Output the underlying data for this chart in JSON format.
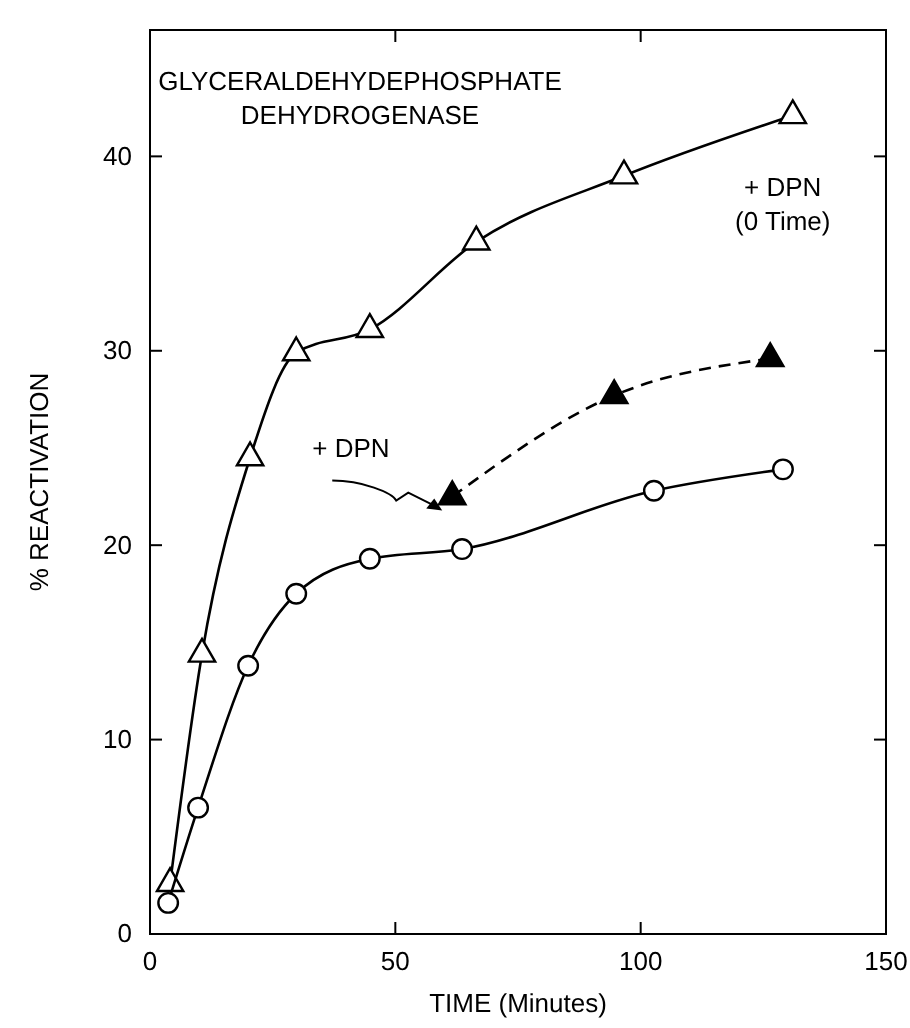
{
  "chart_data": {
    "type": "line",
    "title": "GLYCERALDEHYDEPHOSPHATE DEHYDROGENASE",
    "xlabel": "TIME (Minutes)",
    "ylabel": "% REACTIVATION",
    "xlim": [
      0,
      150
    ],
    "xticks": [
      0,
      50,
      100,
      150
    ],
    "ylim": [
      0,
      46.5
    ],
    "yticks": [
      0,
      10,
      20,
      30,
      40
    ],
    "grid": false,
    "series": [
      {
        "name": "+ DPN (0 Time)",
        "color": "#000000",
        "marker": "triangle",
        "line_style": "solid",
        "x": [
          4.1,
          10.6,
          20.4,
          29.8,
          44.8,
          66.5,
          96.6,
          131
        ],
        "values": [
          2.6,
          14.4,
          24.5,
          29.9,
          31.1,
          35.6,
          39.0,
          42.1
        ]
      },
      {
        "color": "#000000",
        "marker": "circle",
        "line_style": "solid",
        "x": [
          3.7,
          9.8,
          20,
          29.8,
          44.8,
          63.6,
          102.7,
          129
        ],
        "values": [
          1.6,
          6.5,
          13.8,
          17.5,
          19.3,
          19.8,
          22.8,
          23.9
        ]
      },
      {
        "name": "+ DPN",
        "color": "#000000",
        "marker": "triangle",
        "line_style": "dashed",
        "x": [
          61.6,
          94.6,
          126.4
        ],
        "values": [
          22.5,
          27.7,
          29.6
        ]
      }
    ]
  }
}
